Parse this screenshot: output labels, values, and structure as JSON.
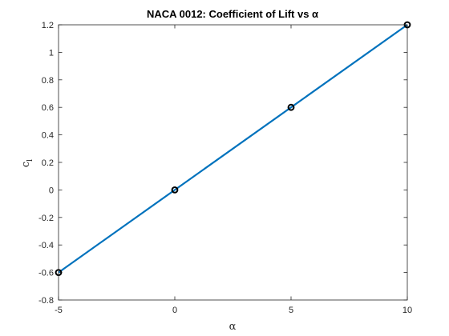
{
  "chart_data": {
    "type": "line",
    "title": "NACA 0012: Coefficient of Lift vs α",
    "xlabel": "α",
    "ylabel_main": "c",
    "ylabel_sub": "l",
    "xlim": [
      -5,
      10
    ],
    "ylim": [
      -0.8,
      1.2
    ],
    "x_ticks": [
      -5,
      0,
      5,
      10
    ],
    "x_tick_labels": [
      "-5",
      "0",
      "5",
      "10"
    ],
    "y_ticks": [
      -0.8,
      -0.6,
      -0.4,
      -0.2,
      0,
      0.2,
      0.4,
      0.6,
      0.8,
      1,
      1.2
    ],
    "y_tick_labels": [
      "-0.8",
      "-0.6",
      "-0.4",
      "-0.2",
      "0",
      "0.2",
      "0.4",
      "0.6",
      "0.8",
      "1",
      "1.2"
    ],
    "grid": false,
    "series": [
      {
        "x": [
          -5,
          10
        ],
        "y": [
          -0.6,
          1.2
        ],
        "color": "#0072BD",
        "marker": "none",
        "style": "line"
      },
      {
        "x": [
          -5,
          0,
          5,
          10
        ],
        "y": [
          -0.6,
          0,
          0.6,
          1.2
        ],
        "color": "#000000",
        "marker": "circle",
        "style": "markers"
      }
    ]
  }
}
